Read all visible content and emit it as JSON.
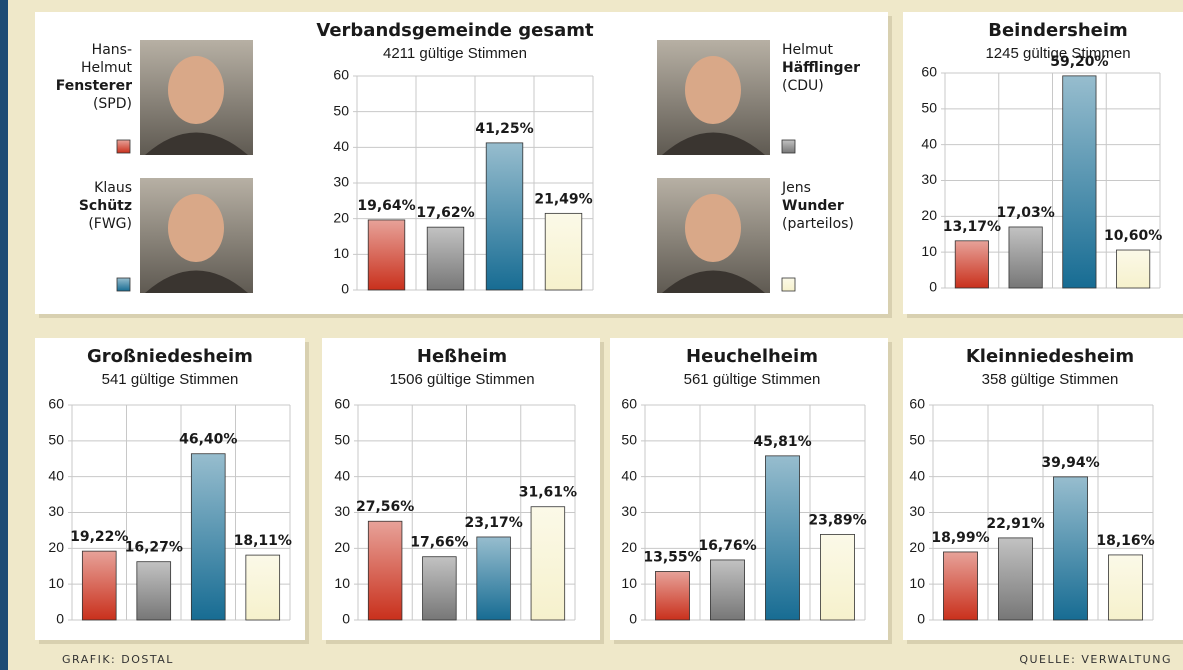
{
  "chart_data": [
    {
      "type": "bar",
      "title": "Verbandsgemeinde gesamt",
      "subtitle": "4211 gültige Stimmen",
      "values": [
        19.64,
        17.62,
        41.25,
        21.49
      ],
      "value_labels": [
        "19,64%",
        "17,62%",
        "41,25%",
        "21,49%"
      ],
      "colors": [
        "#c9301c",
        "#777777",
        "#176c93",
        "#f6f1cc"
      ],
      "ylim": [
        0,
        60
      ],
      "yticks": [
        0,
        10,
        20,
        30,
        40,
        50,
        60
      ],
      "grid": true,
      "legend": [
        {
          "first": [
            "Hans-",
            "Helmut"
          ],
          "last": "Fensterer",
          "party": "(SPD)",
          "color": "#c9301c"
        },
        {
          "first": [
            "Klaus"
          ],
          "last": "Schütz",
          "party": "(FWG)",
          "color": "#176c93"
        },
        {
          "first": [
            "Helmut"
          ],
          "last": "Häfflinger",
          "party": "(CDU)",
          "color": "#777777"
        },
        {
          "first": [
            "Jens"
          ],
          "last": "Wunder",
          "party": "(parteilos)",
          "color": "#f6f1cc"
        }
      ]
    },
    {
      "type": "bar",
      "title": "Beindersheim",
      "subtitle": "1245 gültige Stimmen",
      "values": [
        13.17,
        17.03,
        59.2,
        10.6
      ],
      "value_labels": [
        "13,17%",
        "17,03%",
        "59,20%",
        "10,60%"
      ],
      "colors": [
        "#c9301c",
        "#777777",
        "#176c93",
        "#f6f1cc"
      ],
      "ylim": [
        0,
        60
      ],
      "yticks": [
        0,
        10,
        20,
        30,
        40,
        50,
        60
      ],
      "grid": true
    },
    {
      "type": "bar",
      "title": "Großniedesheim",
      "subtitle": "541 gültige Stimmen",
      "values": [
        19.22,
        16.27,
        46.4,
        18.11
      ],
      "value_labels": [
        "19,22%",
        "16,27%",
        "46,40%",
        "18,11%"
      ],
      "colors": [
        "#c9301c",
        "#777777",
        "#176c93",
        "#f6f1cc"
      ],
      "ylim": [
        0,
        60
      ],
      "yticks": [
        0,
        10,
        20,
        30,
        40,
        50,
        60
      ],
      "grid": true
    },
    {
      "type": "bar",
      "title": "Heßheim",
      "subtitle": "1506 gültige Stimmen",
      "values": [
        27.56,
        17.66,
        23.17,
        31.61
      ],
      "value_labels": [
        "27,56%",
        "17,66%",
        "23,17%",
        "31,61%"
      ],
      "colors": [
        "#c9301c",
        "#777777",
        "#176c93",
        "#f6f1cc"
      ],
      "ylim": [
        0,
        60
      ],
      "yticks": [
        0,
        10,
        20,
        30,
        40,
        50,
        60
      ],
      "grid": true
    },
    {
      "type": "bar",
      "title": "Heuchelheim",
      "subtitle": "561 gültige Stimmen",
      "values": [
        13.55,
        16.76,
        45.81,
        23.89
      ],
      "value_labels": [
        "13,55%",
        "16,76%",
        "45,81%",
        "23,89%"
      ],
      "colors": [
        "#c9301c",
        "#777777",
        "#176c93",
        "#f6f1cc"
      ],
      "ylim": [
        0,
        60
      ],
      "yticks": [
        0,
        10,
        20,
        30,
        40,
        50,
        60
      ],
      "grid": true
    },
    {
      "type": "bar",
      "title": "Kleinniedesheim",
      "subtitle": "358 gültige Stimmen",
      "values": [
        18.99,
        22.91,
        39.94,
        18.16
      ],
      "value_labels": [
        "18,99%",
        "22,91%",
        "39,94%",
        "18,16%"
      ],
      "colors": [
        "#c9301c",
        "#777777",
        "#176c93",
        "#f6f1cc"
      ],
      "ylim": [
        0,
        60
      ],
      "yticks": [
        0,
        10,
        20,
        30,
        40,
        50,
        60
      ],
      "grid": true
    }
  ],
  "footer": {
    "left": "GRAFIK: DOSTAL",
    "right": "QUELLE: VERWALTUNG"
  }
}
